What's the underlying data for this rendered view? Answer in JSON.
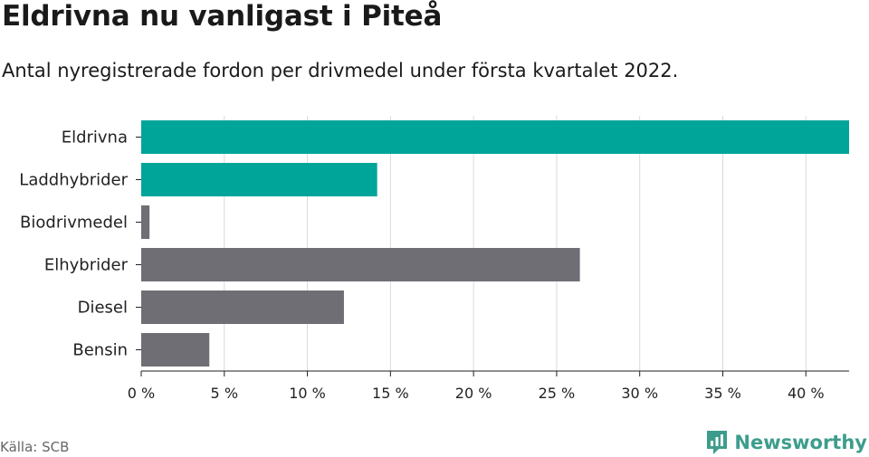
{
  "header": {
    "title": "Eldrivna nu vanligast i Piteå",
    "subtitle": "Antal nyregistrerade fordon per drivmedel under första kvartalet 2022."
  },
  "footer": {
    "source": "Källa: SCB",
    "brand": "Newsworthy",
    "brand_icon": "newsworthy-logo-icon",
    "brand_color": "#3d9d8c"
  },
  "chart_data": {
    "type": "bar",
    "orientation": "horizontal",
    "categories": [
      "Eldrivna",
      "Laddhybrider",
      "Biodrivmedel",
      "Elhybrider",
      "Diesel",
      "Bensin"
    ],
    "values": [
      42.6,
      14.2,
      0.5,
      26.4,
      12.2,
      4.1
    ],
    "highlight": [
      true,
      true,
      false,
      false,
      false,
      false
    ],
    "colors": {
      "highlight": "#00a59a",
      "default": "#706e75",
      "grid": "#d9d9d9",
      "axis": "#222222"
    },
    "x_ticks": [
      0,
      5,
      10,
      15,
      20,
      25,
      30,
      35,
      40
    ],
    "x_tick_labels": [
      "0 %",
      "5 %",
      "10 %",
      "15 %",
      "20 %",
      "25 %",
      "30 %",
      "35 %",
      "40 %"
    ],
    "xlim": [
      0,
      42.6
    ],
    "grid": true,
    "xlabel": "",
    "ylabel": ""
  }
}
